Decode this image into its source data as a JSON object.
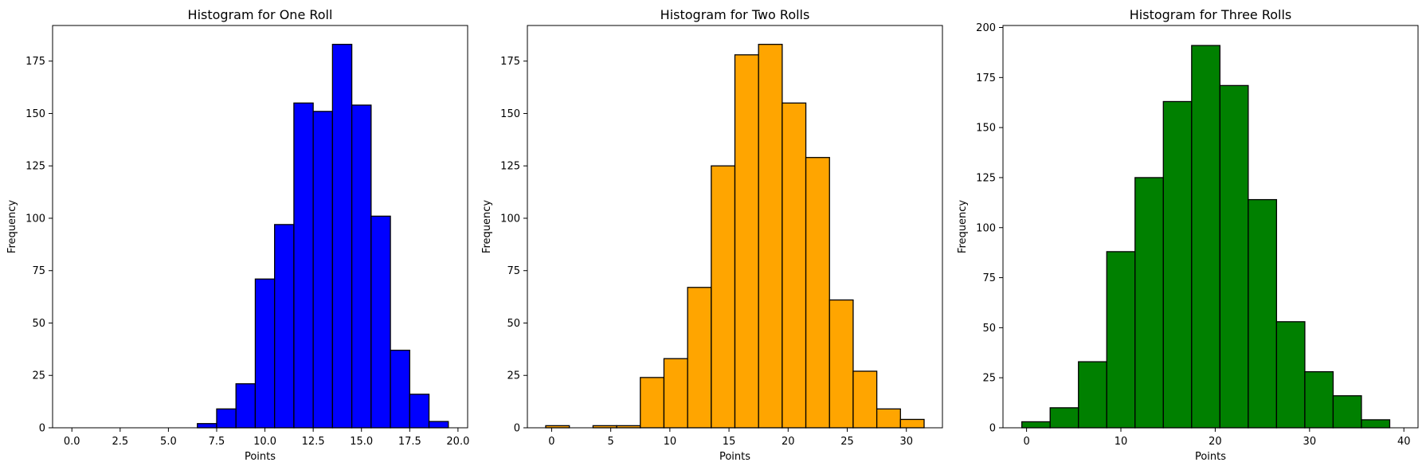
{
  "chart_data": [
    {
      "type": "bar",
      "title": "Histogram for One Roll",
      "xlabel": "Points",
      "ylabel": "Frequency",
      "color": "#0000ff",
      "edge_color": "#000000",
      "xlim": [
        -1,
        20.5
      ],
      "ylim": [
        0,
        192
      ],
      "x_ticks": [
        0,
        2.5,
        5,
        7.5,
        10,
        12.5,
        15,
        17.5,
        20
      ],
      "x_tick_labels": [
        "0.0",
        "2.5",
        "5.0",
        "7.5",
        "10.0",
        "12.5",
        "15.0",
        "17.5",
        "20.0"
      ],
      "y_ticks": [
        0,
        25,
        50,
        75,
        100,
        125,
        150,
        175
      ],
      "y_tick_labels": [
        "0",
        "25",
        "50",
        "75",
        "100",
        "125",
        "150",
        "175"
      ],
      "bins": [
        {
          "x0": -0.5,
          "x1": 0.5,
          "value": 0
        },
        {
          "x0": 0.5,
          "x1": 1.5,
          "value": 0
        },
        {
          "x0": 1.5,
          "x1": 2.5,
          "value": 0
        },
        {
          "x0": 2.5,
          "x1": 3.5,
          "value": 0
        },
        {
          "x0": 3.5,
          "x1": 4.5,
          "value": 0
        },
        {
          "x0": 4.5,
          "x1": 5.5,
          "value": 0
        },
        {
          "x0": 5.5,
          "x1": 6.5,
          "value": 0
        },
        {
          "x0": 6.5,
          "x1": 7.5,
          "value": 2
        },
        {
          "x0": 7.5,
          "x1": 8.5,
          "value": 9
        },
        {
          "x0": 8.5,
          "x1": 9.5,
          "value": 21
        },
        {
          "x0": 9.5,
          "x1": 10.5,
          "value": 71
        },
        {
          "x0": 10.5,
          "x1": 11.5,
          "value": 97
        },
        {
          "x0": 11.5,
          "x1": 12.5,
          "value": 155
        },
        {
          "x0": 12.5,
          "x1": 13.5,
          "value": 151
        },
        {
          "x0": 13.5,
          "x1": 14.5,
          "value": 183
        },
        {
          "x0": 14.5,
          "x1": 15.5,
          "value": 154
        },
        {
          "x0": 15.5,
          "x1": 16.5,
          "value": 101
        },
        {
          "x0": 16.5,
          "x1": 17.5,
          "value": 37
        },
        {
          "x0": 17.5,
          "x1": 18.5,
          "value": 16
        },
        {
          "x0": 18.5,
          "x1": 19.5,
          "value": 3
        }
      ]
    },
    {
      "type": "bar",
      "title": "Histogram for Two Rolls",
      "xlabel": "Points",
      "ylabel": "Frequency",
      "color": "#ffa500",
      "edge_color": "#000000",
      "xlim": [
        -2.05,
        33.05
      ],
      "ylim": [
        0,
        192
      ],
      "x_ticks": [
        0,
        5,
        10,
        15,
        20,
        25,
        30
      ],
      "x_tick_labels": [
        "0",
        "5",
        "10",
        "15",
        "20",
        "25",
        "30"
      ],
      "y_ticks": [
        0,
        25,
        50,
        75,
        100,
        125,
        150,
        175
      ],
      "y_tick_labels": [
        "0",
        "25",
        "50",
        "75",
        "100",
        "125",
        "150",
        "175"
      ],
      "bins": [
        {
          "x0": -0.5,
          "x1": 1.5,
          "value": 1
        },
        {
          "x0": 1.5,
          "x1": 3.5,
          "value": 0
        },
        {
          "x0": 3.5,
          "x1": 5.5,
          "value": 1
        },
        {
          "x0": 5.5,
          "x1": 7.5,
          "value": 1
        },
        {
          "x0": 7.5,
          "x1": 9.5,
          "value": 24
        },
        {
          "x0": 9.5,
          "x1": 11.5,
          "value": 33
        },
        {
          "x0": 11.5,
          "x1": 13.5,
          "value": 67
        },
        {
          "x0": 13.5,
          "x1": 15.5,
          "value": 125
        },
        {
          "x0": 15.5,
          "x1": 17.5,
          "value": 178
        },
        {
          "x0": 17.5,
          "x1": 19.5,
          "value": 183
        },
        {
          "x0": 19.5,
          "x1": 21.5,
          "value": 155
        },
        {
          "x0": 21.5,
          "x1": 23.5,
          "value": 129
        },
        {
          "x0": 23.5,
          "x1": 25.5,
          "value": 61
        },
        {
          "x0": 25.5,
          "x1": 27.5,
          "value": 27
        },
        {
          "x0": 27.5,
          "x1": 29.5,
          "value": 9
        },
        {
          "x0": 29.5,
          "x1": 31.5,
          "value": 4
        }
      ]
    },
    {
      "type": "bar",
      "title": "Histogram for Three Rolls",
      "xlabel": "Points",
      "ylabel": "Frequency",
      "color": "#008000",
      "edge_color": "#000000",
      "xlim": [
        -2.5,
        41.5
      ],
      "ylim": [
        0,
        201
      ],
      "x_ticks": [
        0,
        10,
        20,
        30,
        40
      ],
      "x_tick_labels": [
        "0",
        "10",
        "20",
        "30",
        "40"
      ],
      "y_ticks": [
        0,
        25,
        50,
        75,
        100,
        125,
        150,
        175,
        200
      ],
      "y_tick_labels": [
        "0",
        "25",
        "50",
        "75",
        "100",
        "125",
        "150",
        "175",
        "200"
      ],
      "bins": [
        {
          "x0": -0.5,
          "x1": 2.5,
          "value": 3
        },
        {
          "x0": 2.5,
          "x1": 5.5,
          "value": 10
        },
        {
          "x0": 5.5,
          "x1": 8.5,
          "value": 33
        },
        {
          "x0": 8.5,
          "x1": 11.5,
          "value": 88
        },
        {
          "x0": 11.5,
          "x1": 14.5,
          "value": 125
        },
        {
          "x0": 14.5,
          "x1": 17.5,
          "value": 163
        },
        {
          "x0": 17.5,
          "x1": 20.5,
          "value": 191
        },
        {
          "x0": 20.5,
          "x1": 23.5,
          "value": 171
        },
        {
          "x0": 23.5,
          "x1": 26.5,
          "value": 114
        },
        {
          "x0": 26.5,
          "x1": 29.5,
          "value": 53
        },
        {
          "x0": 29.5,
          "x1": 32.5,
          "value": 28
        },
        {
          "x0": 32.5,
          "x1": 35.5,
          "value": 16
        },
        {
          "x0": 35.5,
          "x1": 38.5,
          "value": 4
        }
      ]
    }
  ]
}
